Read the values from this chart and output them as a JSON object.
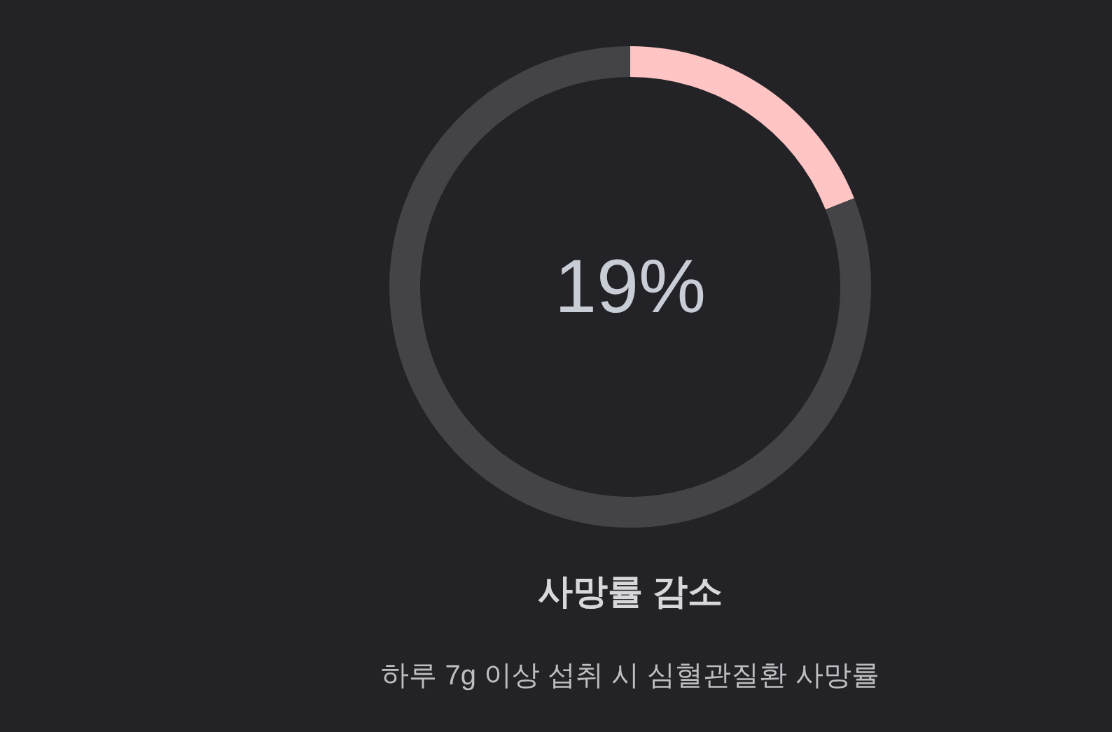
{
  "chart_data": {
    "type": "donut",
    "title": "사망률 감소",
    "subtitle": "하루 7g 이상 섭취 시 심혈관질환 사망률",
    "categories": [
      null,
      null
    ],
    "values": [
      19,
      81
    ],
    "colors": [
      "#ffc4c4",
      "#444348"
    ],
    "value_labels": [
      "19%",
      null
    ]
  }
}
